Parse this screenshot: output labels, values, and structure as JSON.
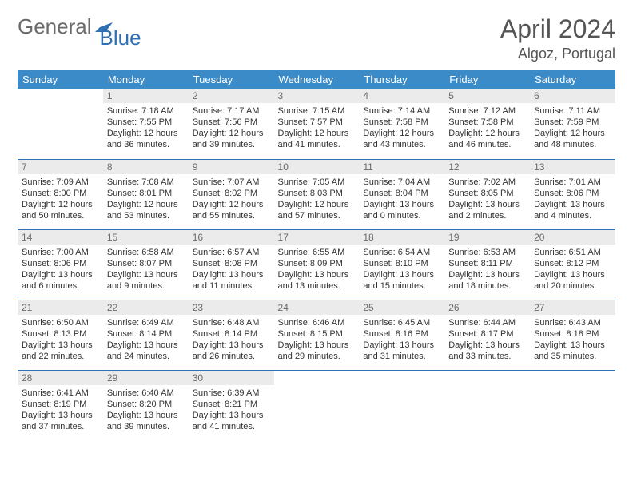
{
  "logo": {
    "text1": "General",
    "text2": "Blue"
  },
  "title": "April 2024",
  "location": "Algoz, Portugal",
  "colors": {
    "header_bg": "#3b8bc8",
    "header_fg": "#ffffff",
    "daynum_bg": "#ebebeb",
    "daynum_fg": "#6a6a6a",
    "row_divider": "#2f6fb3",
    "title_color": "#555555",
    "body_text": "#333333",
    "logo_gray": "#6a6a6a",
    "logo_blue": "#2f6fb3"
  },
  "typography": {
    "title_size_pt": 24,
    "location_size_pt": 13,
    "header_size_pt": 10,
    "cell_size_pt": 8
  },
  "columns": [
    "Sunday",
    "Monday",
    "Tuesday",
    "Wednesday",
    "Thursday",
    "Friday",
    "Saturday"
  ],
  "weeks": [
    [
      null,
      {
        "n": "1",
        "sr": "7:18 AM",
        "ss": "7:55 PM",
        "dl": "12 hours and 36 minutes."
      },
      {
        "n": "2",
        "sr": "7:17 AM",
        "ss": "7:56 PM",
        "dl": "12 hours and 39 minutes."
      },
      {
        "n": "3",
        "sr": "7:15 AM",
        "ss": "7:57 PM",
        "dl": "12 hours and 41 minutes."
      },
      {
        "n": "4",
        "sr": "7:14 AM",
        "ss": "7:58 PM",
        "dl": "12 hours and 43 minutes."
      },
      {
        "n": "5",
        "sr": "7:12 AM",
        "ss": "7:58 PM",
        "dl": "12 hours and 46 minutes."
      },
      {
        "n": "6",
        "sr": "7:11 AM",
        "ss": "7:59 PM",
        "dl": "12 hours and 48 minutes."
      }
    ],
    [
      {
        "n": "7",
        "sr": "7:09 AM",
        "ss": "8:00 PM",
        "dl": "12 hours and 50 minutes."
      },
      {
        "n": "8",
        "sr": "7:08 AM",
        "ss": "8:01 PM",
        "dl": "12 hours and 53 minutes."
      },
      {
        "n": "9",
        "sr": "7:07 AM",
        "ss": "8:02 PM",
        "dl": "12 hours and 55 minutes."
      },
      {
        "n": "10",
        "sr": "7:05 AM",
        "ss": "8:03 PM",
        "dl": "12 hours and 57 minutes."
      },
      {
        "n": "11",
        "sr": "7:04 AM",
        "ss": "8:04 PM",
        "dl": "13 hours and 0 minutes."
      },
      {
        "n": "12",
        "sr": "7:02 AM",
        "ss": "8:05 PM",
        "dl": "13 hours and 2 minutes."
      },
      {
        "n": "13",
        "sr": "7:01 AM",
        "ss": "8:06 PM",
        "dl": "13 hours and 4 minutes."
      }
    ],
    [
      {
        "n": "14",
        "sr": "7:00 AM",
        "ss": "8:06 PM",
        "dl": "13 hours and 6 minutes."
      },
      {
        "n": "15",
        "sr": "6:58 AM",
        "ss": "8:07 PM",
        "dl": "13 hours and 9 minutes."
      },
      {
        "n": "16",
        "sr": "6:57 AM",
        "ss": "8:08 PM",
        "dl": "13 hours and 11 minutes."
      },
      {
        "n": "17",
        "sr": "6:55 AM",
        "ss": "8:09 PM",
        "dl": "13 hours and 13 minutes."
      },
      {
        "n": "18",
        "sr": "6:54 AM",
        "ss": "8:10 PM",
        "dl": "13 hours and 15 minutes."
      },
      {
        "n": "19",
        "sr": "6:53 AM",
        "ss": "8:11 PM",
        "dl": "13 hours and 18 minutes."
      },
      {
        "n": "20",
        "sr": "6:51 AM",
        "ss": "8:12 PM",
        "dl": "13 hours and 20 minutes."
      }
    ],
    [
      {
        "n": "21",
        "sr": "6:50 AM",
        "ss": "8:13 PM",
        "dl": "13 hours and 22 minutes."
      },
      {
        "n": "22",
        "sr": "6:49 AM",
        "ss": "8:14 PM",
        "dl": "13 hours and 24 minutes."
      },
      {
        "n": "23",
        "sr": "6:48 AM",
        "ss": "8:14 PM",
        "dl": "13 hours and 26 minutes."
      },
      {
        "n": "24",
        "sr": "6:46 AM",
        "ss": "8:15 PM",
        "dl": "13 hours and 29 minutes."
      },
      {
        "n": "25",
        "sr": "6:45 AM",
        "ss": "8:16 PM",
        "dl": "13 hours and 31 minutes."
      },
      {
        "n": "26",
        "sr": "6:44 AM",
        "ss": "8:17 PM",
        "dl": "13 hours and 33 minutes."
      },
      {
        "n": "27",
        "sr": "6:43 AM",
        "ss": "8:18 PM",
        "dl": "13 hours and 35 minutes."
      }
    ],
    [
      {
        "n": "28",
        "sr": "6:41 AM",
        "ss": "8:19 PM",
        "dl": "13 hours and 37 minutes."
      },
      {
        "n": "29",
        "sr": "6:40 AM",
        "ss": "8:20 PM",
        "dl": "13 hours and 39 minutes."
      },
      {
        "n": "30",
        "sr": "6:39 AM",
        "ss": "8:21 PM",
        "dl": "13 hours and 41 minutes."
      },
      null,
      null,
      null,
      null
    ]
  ],
  "labels": {
    "sunrise": "Sunrise:",
    "sunset": "Sunset:",
    "daylight": "Daylight:"
  }
}
